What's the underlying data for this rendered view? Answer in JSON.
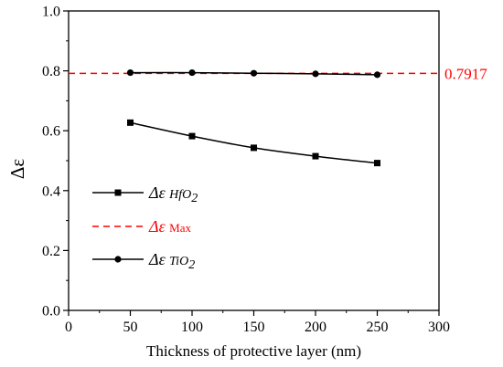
{
  "chart_data": {
    "type": "line",
    "xlabel": "Thickness of protective layer (nm)",
    "ylabel": "Δε",
    "xlim": [
      0,
      300
    ],
    "ylim": [
      0.0,
      1.0
    ],
    "x_ticks": [
      0,
      50,
      100,
      150,
      200,
      250,
      300
    ],
    "y_ticks": [
      0.0,
      0.2,
      0.4,
      0.6,
      0.8,
      1.0
    ],
    "x_tick_labels": [
      "0",
      "50",
      "100",
      "150",
      "200",
      "250",
      "300"
    ],
    "y_tick_labels": [
      "0.0",
      "0.2",
      "0.4",
      "0.6",
      "0.8",
      "1.0"
    ],
    "grid": false,
    "legend_position": "left",
    "series": [
      {
        "key": "hfo2",
        "legend_main": "Δε",
        "legend_sub": "HfO",
        "legend_subscript": "2",
        "color": "#000000",
        "marker": "square",
        "x": [
          50,
          100,
          150,
          200,
          250
        ],
        "y": [
          0.627,
          0.582,
          0.543,
          0.515,
          0.492
        ]
      },
      {
        "key": "tio2",
        "legend_main": "Δε",
        "legend_sub": "TiO",
        "legend_subscript": "2",
        "color": "#000000",
        "marker": "circle",
        "x": [
          50,
          100,
          150,
          200,
          250
        ],
        "y": [
          0.794,
          0.794,
          0.792,
          0.79,
          0.787
        ]
      }
    ],
    "reference_line": {
      "key": "max",
      "legend_main": "Δε",
      "legend_sub": "Max",
      "value": 0.7917,
      "label": "0.7917",
      "color": "#ff0000",
      "style": "dashed"
    }
  }
}
